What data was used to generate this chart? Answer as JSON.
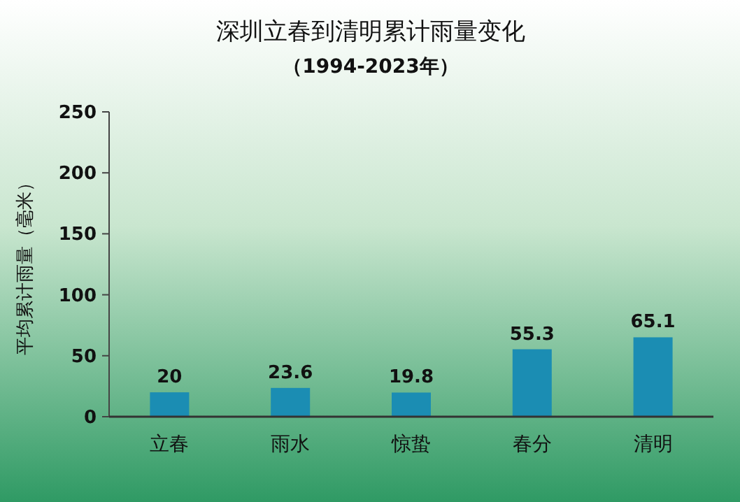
{
  "chart_data": {
    "type": "bar",
    "title": "深圳立春到清明累计雨量变化",
    "subtitle": "（1994-2023年）",
    "ylabel": "平均累计雨量（毫米）",
    "categories": [
      "立春",
      "雨水",
      "惊蛰",
      "春分",
      "清明"
    ],
    "values": [
      20,
      23.6,
      19.8,
      55.3,
      65.1
    ],
    "color": "#1b8db3",
    "ylim": [
      0,
      250
    ],
    "yticks": [
      0,
      50,
      100,
      150,
      200,
      250
    ],
    "data_labels": true
  }
}
